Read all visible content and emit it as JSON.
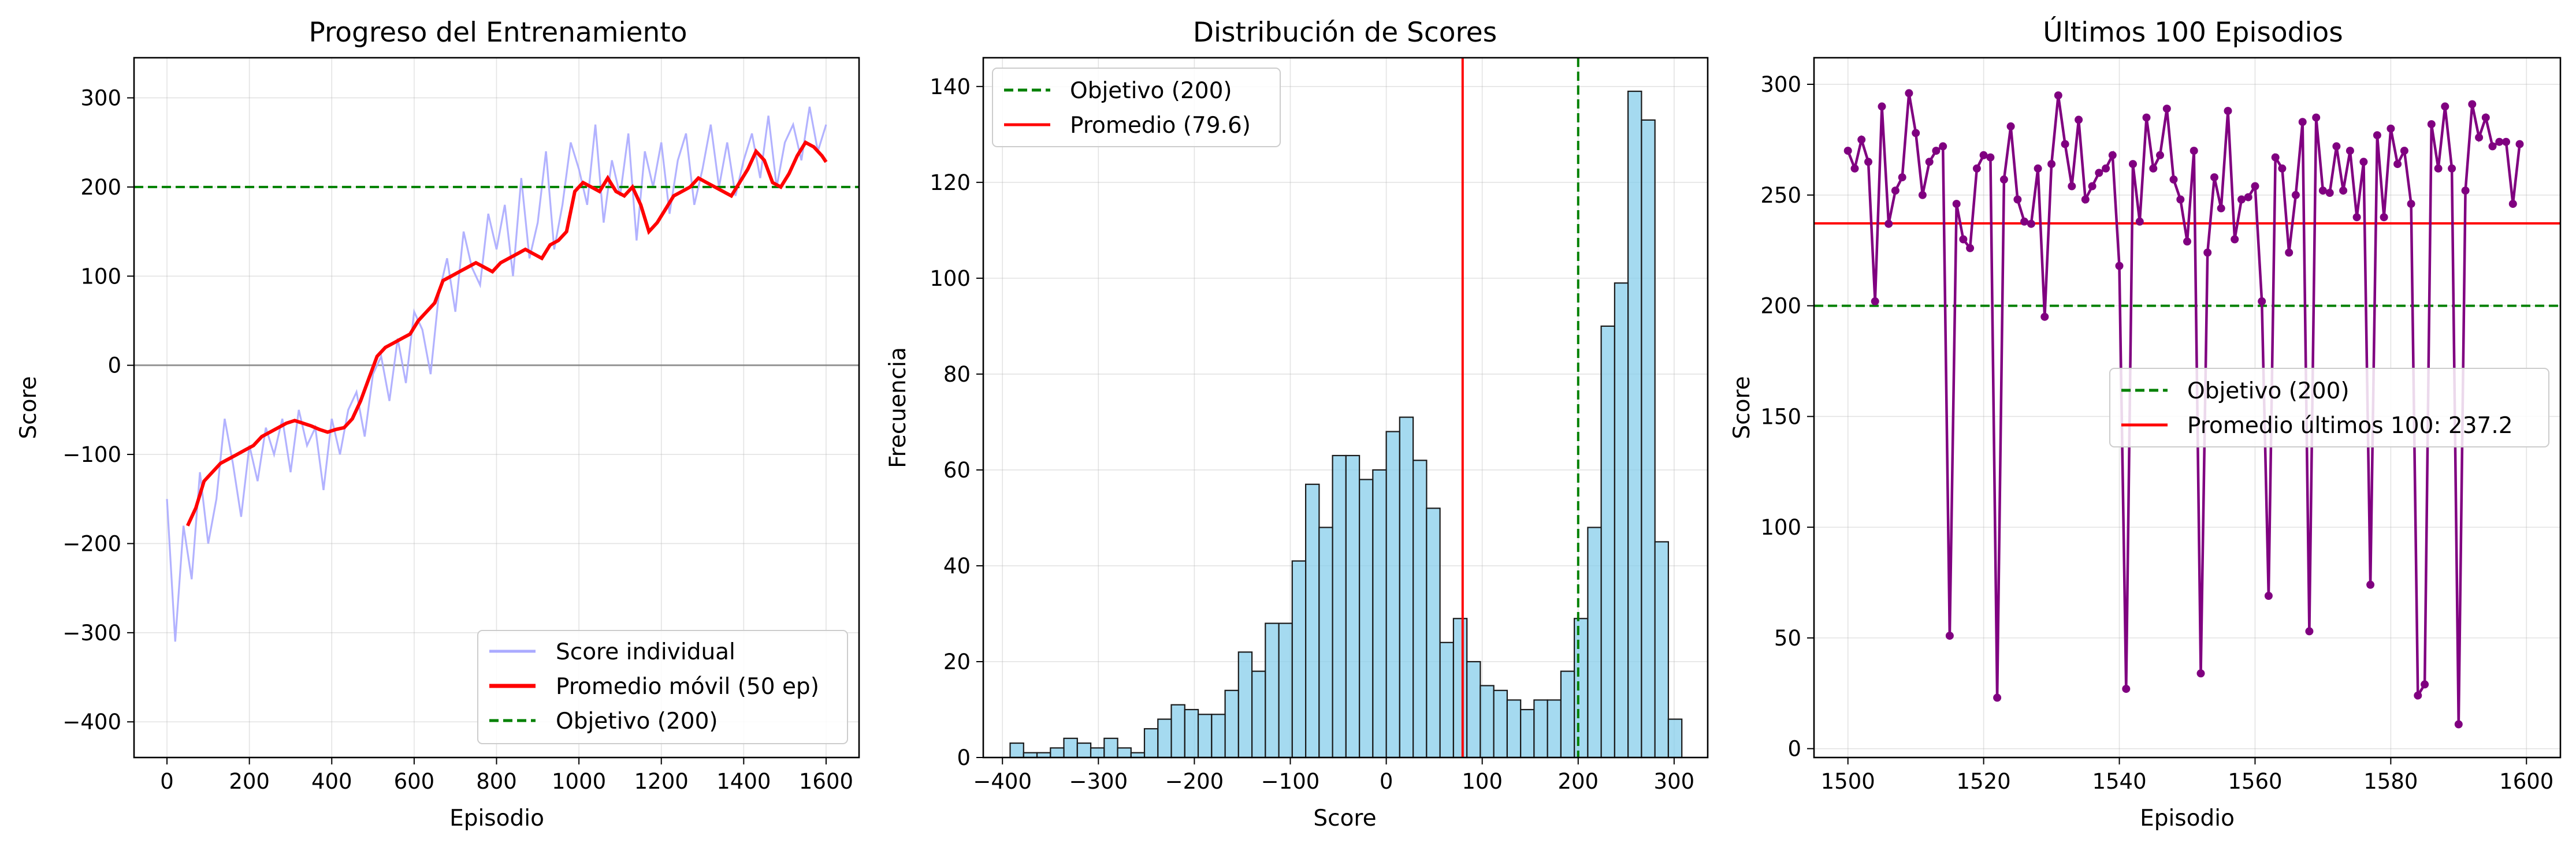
{
  "chart_data": [
    {
      "type": "line",
      "title": "Progreso del Entrenamiento",
      "xlabel": "Episodio",
      "ylabel": "Score",
      "xlim": [
        -80,
        1680
      ],
      "ylim": [
        -440,
        345
      ],
      "xticks": [
        0,
        200,
        400,
        600,
        800,
        1000,
        1200,
        1400,
        1600
      ],
      "yticks": [
        -400,
        -300,
        -200,
        -100,
        0,
        100,
        200,
        300
      ],
      "grid": true,
      "legend": "lower-right",
      "series": [
        {
          "name": "Score individual",
          "color": "#aaaaff",
          "x": [
            0,
            20,
            40,
            60,
            80,
            100,
            120,
            140,
            160,
            180,
            200,
            220,
            240,
            260,
            280,
            300,
            320,
            340,
            360,
            380,
            400,
            420,
            440,
            460,
            480,
            500,
            520,
            540,
            560,
            580,
            600,
            620,
            640,
            660,
            680,
            700,
            720,
            740,
            760,
            780,
            800,
            820,
            840,
            860,
            880,
            900,
            920,
            940,
            960,
            980,
            1000,
            1020,
            1040,
            1060,
            1080,
            1100,
            1120,
            1140,
            1160,
            1180,
            1200,
            1220,
            1240,
            1260,
            1280,
            1300,
            1320,
            1340,
            1360,
            1380,
            1400,
            1420,
            1440,
            1460,
            1480,
            1500,
            1520,
            1540,
            1560,
            1580,
            1600
          ],
          "y": [
            -150,
            -310,
            -180,
            -240,
            -120,
            -200,
            -150,
            -60,
            -110,
            -170,
            -90,
            -130,
            -70,
            -100,
            -60,
            -120,
            -50,
            -90,
            -70,
            -140,
            -60,
            -100,
            -50,
            -30,
            -80,
            -10,
            10,
            -40,
            30,
            -20,
            60,
            40,
            -10,
            80,
            120,
            60,
            150,
            110,
            90,
            170,
            130,
            180,
            100,
            210,
            120,
            160,
            240,
            130,
            180,
            250,
            220,
            180,
            270,
            160,
            230,
            190,
            260,
            140,
            240,
            200,
            250,
            170,
            230,
            260,
            180,
            220,
            270,
            200,
            250,
            190,
            230,
            260,
            210,
            280,
            200,
            250,
            270,
            230,
            290,
            240,
            270
          ]
        },
        {
          "name": "Promedio móvil (50 ep)",
          "color": "#ff0000",
          "x": [
            50,
            70,
            90,
            110,
            130,
            150,
            170,
            190,
            210,
            230,
            250,
            270,
            290,
            310,
            330,
            350,
            370,
            390,
            410,
            430,
            450,
            470,
            490,
            510,
            530,
            550,
            570,
            590,
            610,
            630,
            650,
            670,
            690,
            710,
            730,
            750,
            770,
            790,
            810,
            830,
            850,
            870,
            890,
            910,
            930,
            950,
            970,
            990,
            1010,
            1030,
            1050,
            1070,
            1090,
            1110,
            1130,
            1150,
            1170,
            1190,
            1210,
            1230,
            1250,
            1270,
            1290,
            1310,
            1330,
            1350,
            1370,
            1390,
            1410,
            1430,
            1450,
            1470,
            1490,
            1510,
            1530,
            1550,
            1570,
            1590,
            1600
          ],
          "y": [
            -180,
            -160,
            -130,
            -120,
            -110,
            -105,
            -100,
            -95,
            -90,
            -80,
            -75,
            -70,
            -65,
            -62,
            -65,
            -68,
            -72,
            -75,
            -72,
            -70,
            -60,
            -40,
            -15,
            10,
            20,
            25,
            30,
            35,
            50,
            60,
            70,
            95,
            100,
            105,
            110,
            115,
            110,
            105,
            115,
            120,
            125,
            130,
            125,
            120,
            135,
            140,
            150,
            195,
            205,
            200,
            195,
            210,
            195,
            190,
            200,
            180,
            150,
            160,
            175,
            190,
            195,
            200,
            210,
            205,
            200,
            195,
            190,
            205,
            220,
            240,
            230,
            205,
            200,
            215,
            235,
            250,
            245,
            235,
            228
          ]
        },
        {
          "name": "Objetivo (200)",
          "color": "#008000",
          "value": 200
        }
      ]
    },
    {
      "type": "bar",
      "title": "Distribución de Scores",
      "xlabel": "Score",
      "ylabel": "Frecuencia",
      "xlim": [
        -420,
        335
      ],
      "ylim": [
        0,
        146
      ],
      "xticks": [
        -400,
        -300,
        -200,
        -100,
        0,
        100,
        200,
        300
      ],
      "yticks": [
        0,
        20,
        40,
        60,
        80,
        100,
        120,
        140
      ],
      "grid": true,
      "legend": "top-left",
      "bar_color": "#87ceeb",
      "bin_width": 14,
      "bin_starts": [
        -392,
        -378,
        -364,
        -350,
        -336,
        -322,
        -308,
        -294,
        -280,
        -266,
        -252,
        -238,
        -224,
        -210,
        -196,
        -182,
        -168,
        -154,
        -140,
        -126,
        -112,
        -98,
        -84,
        -70,
        -56,
        -42,
        -28,
        -14,
        0,
        14,
        28,
        42,
        56,
        70,
        84,
        98,
        112,
        126,
        140,
        154,
        168,
        182,
        196,
        210,
        224,
        238,
        252,
        266,
        280,
        294
      ],
      "values": [
        3,
        1,
        1,
        2,
        4,
        3,
        2,
        4,
        2,
        1,
        6,
        8,
        11,
        10,
        9,
        9,
        14,
        22,
        18,
        28,
        28,
        41,
        57,
        48,
        63,
        63,
        58,
        60,
        68,
        71,
        62,
        52,
        24,
        29,
        20,
        15,
        14,
        12,
        10,
        12,
        12,
        18,
        29,
        48,
        90,
        99,
        139,
        133,
        45,
        8
      ],
      "reference_lines": [
        {
          "name": "Objetivo (200)",
          "value": 200,
          "color": "#008000"
        },
        {
          "name": "Promedio (79.6)",
          "value": 79.6,
          "color": "#ff0000"
        }
      ]
    },
    {
      "type": "line",
      "title": "Últimos 100 Episodios",
      "xlabel": "Episodio",
      "ylabel": "Score",
      "xlim": [
        1495,
        1605
      ],
      "ylim": [
        -4,
        312
      ],
      "xticks": [
        1500,
        1520,
        1540,
        1560,
        1580,
        1600
      ],
      "yticks": [
        0,
        50,
        100,
        150,
        200,
        250,
        300
      ],
      "grid": true,
      "legend": "center-right",
      "series": [
        {
          "name": "",
          "color": "#800080",
          "x": [
            1500,
            1501,
            1502,
            1503,
            1504,
            1505,
            1506,
            1507,
            1508,
            1509,
            1510,
            1511,
            1512,
            1513,
            1514,
            1515,
            1516,
            1517,
            1518,
            1519,
            1520,
            1521,
            1522,
            1523,
            1524,
            1525,
            1526,
            1527,
            1528,
            1529,
            1530,
            1531,
            1532,
            1533,
            1534,
            1535,
            1536,
            1537,
            1538,
            1539,
            1540,
            1541,
            1542,
            1543,
            1544,
            1545,
            1546,
            1547,
            1548,
            1549,
            1550,
            1551,
            1552,
            1553,
            1554,
            1555,
            1556,
            1557,
            1558,
            1559,
            1560,
            1561,
            1562,
            1563,
            1564,
            1565,
            1566,
            1567,
            1568,
            1569,
            1570,
            1571,
            1572,
            1573,
            1574,
            1575,
            1576,
            1577,
            1578,
            1579,
            1580,
            1581,
            1582,
            1583,
            1584,
            1585,
            1586,
            1587,
            1588,
            1589,
            1590,
            1591,
            1592,
            1593,
            1594,
            1595,
            1596,
            1597,
            1598,
            1599
          ],
          "y": [
            270,
            262,
            275,
            265,
            202,
            290,
            237,
            252,
            258,
            296,
            278,
            250,
            265,
            270,
            272,
            51,
            246,
            230,
            226,
            262,
            268,
            267,
            23,
            257,
            281,
            248,
            238,
            237,
            262,
            195,
            264,
            295,
            273,
            254,
            284,
            248,
            254,
            260,
            262,
            268,
            218,
            27,
            264,
            238,
            285,
            262,
            268,
            289,
            257,
            248,
            229,
            270,
            34,
            224,
            258,
            244,
            288,
            230,
            248,
            249,
            254,
            202,
            69,
            267,
            262,
            224,
            250,
            283,
            53,
            285,
            252,
            251,
            272,
            252,
            270,
            240,
            265,
            74,
            277,
            240,
            280,
            264,
            270,
            246,
            24,
            29,
            282,
            262,
            290,
            262,
            11,
            252,
            291,
            276,
            285,
            272,
            274,
            274,
            246,
            273
          ]
        },
        {
          "name": "Objetivo (200)",
          "value": 200,
          "color": "#008000"
        },
        {
          "name": "Promedio últimos 100: 237.2",
          "value": 237.2,
          "color": "#ff0000"
        }
      ]
    }
  ]
}
